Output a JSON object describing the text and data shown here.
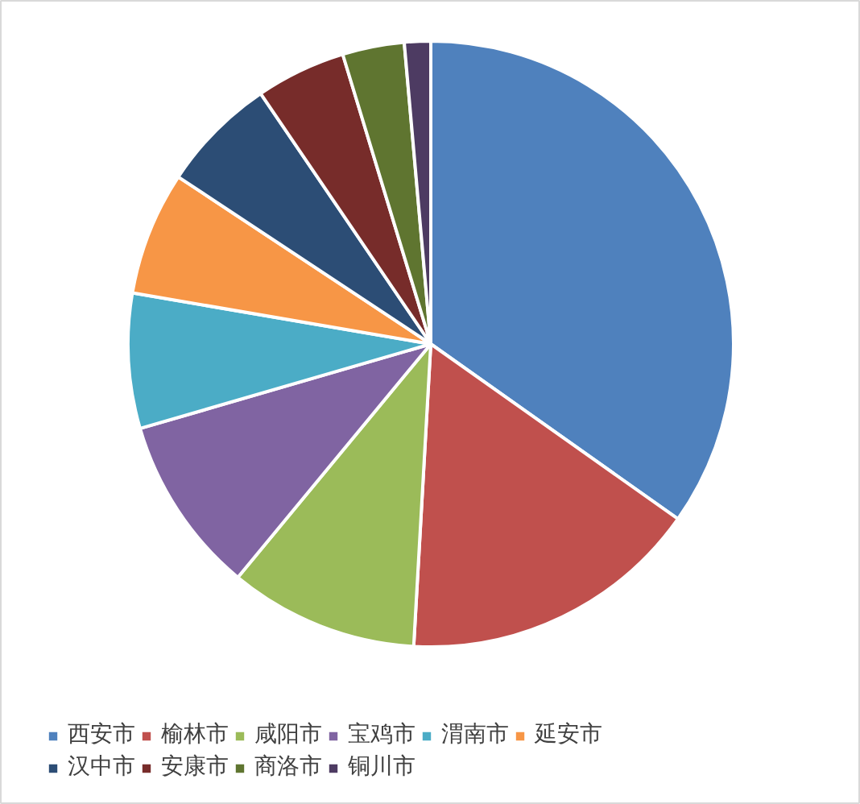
{
  "chart_data": {
    "type": "pie",
    "categories": [
      "西安市",
      "榆林市",
      "咸阳市",
      "宝鸡市",
      "渭南市",
      "延安市",
      "汉中市",
      "安康市",
      "商洛市",
      "铜川市",
      null
    ],
    "values": [
      34.8,
      16.1,
      10.1,
      9.5,
      7.2,
      6.6,
      6.2,
      4.8,
      3.3,
      1.4,
      0
    ],
    "colors": [
      "#4f81bd",
      "#c0504d",
      "#9bbb59",
      "#8064a2",
      "#4bacc6",
      "#f79646",
      "#2c4d75",
      "#772c2a",
      "#5f7530",
      "#4d3b62",
      "#276a7c"
    ],
    "legend": "bottom"
  }
}
